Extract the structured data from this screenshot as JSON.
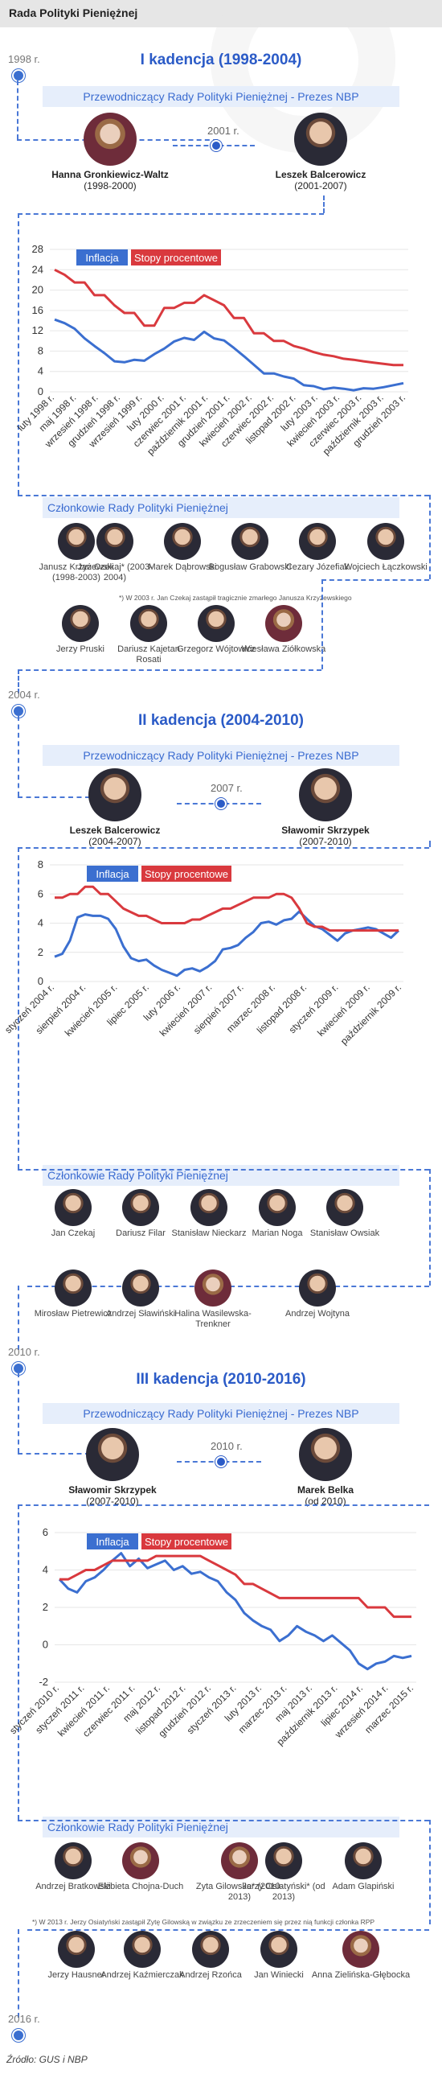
{
  "header": {
    "title": "Rada Polityki Pieniężnej"
  },
  "colors": {
    "inflation": "#3b6fd0",
    "rates": "#d9393e",
    "accent": "#2b5bc7"
  },
  "terms": [
    {
      "start_year": "1998 r.",
      "title": "I kadencja (1998-2004)",
      "chair_bar": "Przewodniczący Rady Polityki Pieniężnej - Prezes NBP",
      "chairs": [
        {
          "name": "Hanna Gronkiewicz-Waltz",
          "years": "(1998-2000)"
        },
        {
          "name": "Leszek Balcerowicz",
          "years": "(2001-2007)"
        }
      ],
      "transition_year": "2001 r.",
      "members_bar": "Członkowie Rady Polityki Pieniężnej",
      "members": [
        {
          "name": "Janusz Krzyżewski (1998-2003)"
        },
        {
          "name": "Jan Czekaj* (2003-2004)"
        },
        {
          "name": "Marek Dąbrowski"
        },
        {
          "name": "Bogusław Grabowski"
        },
        {
          "name": "Cezary Józefiak"
        },
        {
          "name": "Wojciech Łączkowski"
        },
        {
          "name": "Jerzy Pruski"
        },
        {
          "name": "Dariusz Kajetan Rosati"
        },
        {
          "name": "Grzegorz Wójtowicz"
        },
        {
          "name": "Wiesława Ziółkowska"
        }
      ],
      "footnote": "*) W 2003 r. Jan Czekaj zastąpił tragicznie zmarłego Janusza Krzyżewskiego"
    },
    {
      "start_year": "2004 r.",
      "title": "II kadencja (2004-2010)",
      "chair_bar": "Przewodniczący Rady Polityki Pieniężnej - Prezes NBP",
      "chairs": [
        {
          "name": "Leszek Balcerowicz",
          "years": "(2004-2007)"
        },
        {
          "name": "Sławomir Skrzypek",
          "years": "(2007-2010)"
        }
      ],
      "transition_year": "2007 r.",
      "members_bar": "Członkowie Rady Polityki Pieniężnej",
      "members": [
        {
          "name": "Jan Czekaj"
        },
        {
          "name": "Dariusz Filar"
        },
        {
          "name": "Stanisław Nieckarz"
        },
        {
          "name": "Marian Noga"
        },
        {
          "name": "Stanisław Owsiak"
        },
        {
          "name": "Mirosław Pietrewicz"
        },
        {
          "name": "Andrzej Sławiński"
        },
        {
          "name": "Halina Wasilewska-Trenkner"
        },
        {
          "name": "Andrzej Wojtyna"
        }
      ],
      "footnote": ""
    },
    {
      "start_year": "2010 r.",
      "title": "III kadencja (2010-2016)",
      "chair_bar": "Przewodniczący Rady Polityki Pieniężnej - Prezes NBP",
      "chairs": [
        {
          "name": "Sławomir Skrzypek",
          "years": "(2007-2010)"
        },
        {
          "name": "Marek Belka",
          "years": "(od 2010)"
        }
      ],
      "transition_year": "2010 r.",
      "members_bar": "Członkowie Rady Polityki Pieniężnej",
      "members": [
        {
          "name": "Andrzej Bratkowski"
        },
        {
          "name": "Elżbieta Chojna-Duch"
        },
        {
          "name": "Zyta Gilowska* (2010-2013)"
        },
        {
          "name": "Jerzy Osiatyński* (od 2013)"
        },
        {
          "name": "Adam Glapiński"
        },
        {
          "name": "Jerzy Hausner"
        },
        {
          "name": "Andrzej Kaźmierczak"
        },
        {
          "name": "Andrzej Rzońca"
        },
        {
          "name": "Jan Winiecki"
        },
        {
          "name": "Anna Zielińska-Głębocka"
        }
      ],
      "footnote": "*) W 2013 r. Jerzy Osiatyński zastąpił Zytę Gilowską w związku ze zrzeczeniem się przez nią funkcji członka RPP"
    }
  ],
  "end_year": "2016 r.",
  "source": "Źródło: GUS i NBP",
  "chart_data": [
    {
      "type": "line",
      "legend": [
        "Inflacja",
        "Stopy procentowe"
      ],
      "yticks": [
        0,
        4,
        8,
        12,
        16,
        20,
        24,
        28
      ],
      "ylim": [
        0,
        28
      ],
      "x_labels": [
        "luty 1998 r.",
        "maj 1998 r.",
        "wrzesień 1998 r.",
        "grudzień 1998 r.",
        "wrzesień 1999 r.",
        "luty 2000 r.",
        "czerwiec 2001 r.",
        "październik 2001 r.",
        "grudzień 2001 r.",
        "kwiecień 2002 r.",
        "czerwiec 2002 r.",
        "listopad 2002 r.",
        "luty 2003 r.",
        "kwiecień 2003 r.",
        "czerwiec 2003 r.",
        "październik 2003 r.",
        "grudzień 2003 r."
      ],
      "series": [
        {
          "name": "Inflacja",
          "values": [
            14.2,
            13.5,
            12.4,
            10.5,
            9.0,
            7.6,
            6.0,
            5.8,
            6.3,
            6.1,
            7.4,
            8.5,
            9.9,
            10.6,
            10.2,
            11.8,
            10.5,
            10.1,
            8.6,
            7.0,
            5.3,
            3.6,
            3.6,
            3.0,
            2.6,
            1.3,
            1.1,
            0.5,
            0.8,
            0.6,
            0.3,
            0.7,
            0.6,
            0.9,
            1.3,
            1.7
          ]
        },
        {
          "name": "Stopy procentowe",
          "values": [
            24.0,
            23.0,
            21.5,
            21.5,
            19.0,
            19.0,
            17.0,
            15.5,
            15.5,
            13.0,
            13.0,
            16.5,
            16.5,
            17.5,
            17.5,
            19.0,
            18.0,
            17.0,
            14.5,
            14.5,
            11.5,
            11.5,
            10.0,
            10.0,
            9.0,
            8.5,
            7.8,
            7.3,
            7.0,
            6.5,
            6.3,
            6.0,
            5.75,
            5.5,
            5.25,
            5.25
          ]
        }
      ]
    },
    {
      "type": "line",
      "legend": [
        "Inflacja",
        "Stopy procentowe"
      ],
      "yticks": [
        0,
        2,
        4,
        6,
        8
      ],
      "ylim": [
        0,
        8
      ],
      "x_labels": [
        "styczeń 2004 r.",
        "sierpień 2004 r.",
        "kwiecień 2005 r.",
        "lipiec 2005 r.",
        "luty 2006 r.",
        "kwiecień 2007 r.",
        "sierpień 2007 r.",
        "marzec 2008 r.",
        "listopad 2008 r.",
        "styczeń 2009 r.",
        "kwiecień 2009 r.",
        "październik 2009 r."
      ],
      "series": [
        {
          "name": "Inflacja",
          "values": [
            1.7,
            1.9,
            2.8,
            4.4,
            4.6,
            4.5,
            4.5,
            4.3,
            3.6,
            2.4,
            1.6,
            1.4,
            1.5,
            1.1,
            0.8,
            0.6,
            0.4,
            0.8,
            0.9,
            0.7,
            1.0,
            1.4,
            2.2,
            2.3,
            2.5,
            3.0,
            3.4,
            4.0,
            4.1,
            3.9,
            4.2,
            4.3,
            4.8,
            4.3,
            3.8,
            3.6,
            3.2,
            2.8,
            3.3,
            3.5,
            3.6,
            3.7,
            3.6,
            3.3,
            3.0,
            3.5
          ]
        },
        {
          "name": "Stopy procentowe",
          "values": [
            5.75,
            5.75,
            6.0,
            6.0,
            6.5,
            6.5,
            6.0,
            6.0,
            5.5,
            5.0,
            4.75,
            4.5,
            4.5,
            4.25,
            4.0,
            4.0,
            4.0,
            4.0,
            4.25,
            4.25,
            4.5,
            4.75,
            5.0,
            5.0,
            5.25,
            5.5,
            5.75,
            5.75,
            5.75,
            6.0,
            6.0,
            5.75,
            5.0,
            4.0,
            3.75,
            3.75,
            3.5,
            3.5,
            3.5,
            3.5,
            3.5,
            3.5,
            3.5,
            3.5,
            3.5,
            3.5
          ]
        }
      ]
    },
    {
      "type": "line",
      "legend": [
        "Inflacja",
        "Stopy procentowe"
      ],
      "yticks": [
        -2,
        0,
        2,
        4,
        6
      ],
      "ylim": [
        -2,
        6
      ],
      "x_labels": [
        "styczeń 2010 r.",
        "styczeń 2011 r.",
        "kwiecień 2011 r.",
        "czerwiec 2011 r.",
        "maj 2012 r.",
        "listopad 2012 r.",
        "grudzień 2012 r.",
        "styczeń 2013 r.",
        "luty 2013 r.",
        "marzec 2013 r.",
        "maj 2013 r.",
        "październik 2013 r.",
        "lipiec 2014 r.",
        "wrzesień 2014 r.",
        "marzec 2015 r."
      ],
      "series": [
        {
          "name": "Inflacja",
          "values": [
            3.5,
            3.0,
            2.8,
            3.4,
            3.6,
            4.0,
            4.5,
            4.9,
            4.2,
            4.6,
            4.1,
            4.3,
            4.5,
            4.0,
            4.2,
            3.8,
            3.9,
            3.6,
            3.4,
            2.8,
            2.4,
            1.7,
            1.3,
            1.0,
            0.8,
            0.2,
            0.5,
            1.0,
            0.7,
            0.5,
            0.2,
            0.5,
            0.1,
            -0.3,
            -1.0,
            -1.3,
            -1.0,
            -0.9,
            -0.6,
            -0.7,
            -0.6
          ]
        },
        {
          "name": "Stopy procentowe",
          "values": [
            3.5,
            3.5,
            3.75,
            4.0,
            4.0,
            4.25,
            4.5,
            4.5,
            4.5,
            4.5,
            4.5,
            4.75,
            4.75,
            4.75,
            4.75,
            4.75,
            4.75,
            4.5,
            4.25,
            4.0,
            3.75,
            3.25,
            3.25,
            3.0,
            2.75,
            2.5,
            2.5,
            2.5,
            2.5,
            2.5,
            2.5,
            2.5,
            2.5,
            2.5,
            2.5,
            2.0,
            2.0,
            2.0,
            1.5,
            1.5,
            1.5
          ]
        }
      ]
    }
  ]
}
